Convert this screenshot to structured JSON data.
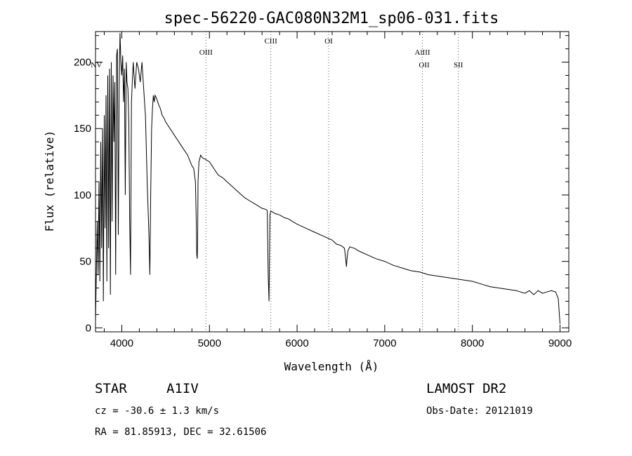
{
  "chart_data": {
    "type": "line",
    "title": "spec-56220-GAC080N32M1_sp06-031.fits",
    "xlabel": "Wavelength (Å)",
    "ylabel": "Flux (relative)",
    "xlim": [
      3700,
      9100
    ],
    "ylim": [
      -3,
      223
    ],
    "xticks": [
      4000,
      5000,
      6000,
      7000,
      8000,
      9000
    ],
    "yticks": [
      0,
      50,
      100,
      150,
      200
    ],
    "grid": false,
    "spectral_lines": [
      {
        "name": "NV",
        "wavelength": 3710
      },
      {
        "name": "OIII",
        "wavelength": 4960
      },
      {
        "name": "CIII",
        "wavelength": 5700
      },
      {
        "name": "OI",
        "wavelength": 6360
      },
      {
        "name": "AlIII",
        "wavelength": 7430
      },
      {
        "name": "OII",
        "wavelength": 7450
      },
      {
        "name": "SII",
        "wavelength": 7840
      }
    ],
    "series": [
      {
        "x": [
          3700,
          3720,
          3730,
          3740,
          3750,
          3760,
          3770,
          3780,
          3790,
          3800,
          3810,
          3820,
          3830,
          3840,
          3850,
          3860,
          3870,
          3880,
          3890,
          3900,
          3910,
          3920,
          3930,
          3940,
          3950,
          3960,
          3970,
          3980,
          3990,
          4000,
          4010,
          4020,
          4030,
          4040,
          4050,
          4060,
          4070,
          4080,
          4090,
          4100,
          4110,
          4120,
          4130,
          4140,
          4150,
          4170,
          4190,
          4210,
          4230,
          4250,
          4270,
          4290,
          4310,
          4320,
          4330,
          4340,
          4350,
          4360,
          4370,
          4380,
          4400,
          4420,
          4440,
          4460,
          4480,
          4500,
          4550,
          4600,
          4650,
          4700,
          4750,
          4800,
          4820,
          4840,
          4850,
          4855,
          4861,
          4866,
          4870,
          4880,
          4900,
          4920,
          4950,
          5000,
          5050,
          5100,
          5150,
          5200,
          5250,
          5300,
          5350,
          5400,
          5450,
          5500,
          5550,
          5600,
          5650,
          5660,
          5670,
          5680,
          5690,
          5700,
          5750,
          5800,
          5850,
          5900,
          5950,
          6000,
          6100,
          6200,
          6300,
          6400,
          6450,
          6500,
          6540,
          6555,
          6563,
          6570,
          6580,
          6600,
          6650,
          6700,
          6800,
          6900,
          7000,
          7100,
          7200,
          7300,
          7400,
          7500,
          7600,
          7700,
          7800,
          7900,
          8000,
          8100,
          8200,
          8300,
          8400,
          8500,
          8550,
          8600,
          8650,
          8700,
          8750,
          8800,
          8850,
          8900,
          8950,
          8980,
          9000
        ],
        "y": [
          5,
          80,
          40,
          110,
          35,
          140,
          60,
          150,
          20,
          160,
          75,
          175,
          35,
          190,
          60,
          195,
          25,
          200,
          80,
          190,
          140,
          185,
          40,
          205,
          210,
          70,
          180,
          222,
          200,
          190,
          205,
          170,
          195,
          100,
          200,
          185,
          180,
          155,
          80,
          40,
          170,
          185,
          200,
          190,
          180,
          200,
          195,
          185,
          200,
          180,
          160,
          110,
          70,
          40,
          100,
          150,
          165,
          175,
          170,
          175,
          172,
          168,
          165,
          160,
          158,
          155,
          150,
          145,
          140,
          135,
          130,
          122,
          120,
          110,
          80,
          55,
          52,
          70,
          110,
          125,
          130,
          128,
          127,
          125,
          120,
          115,
          113,
          110,
          107,
          104,
          101,
          98,
          96,
          94,
          92,
          90,
          89,
          88,
          40,
          20,
          85,
          88,
          86,
          85,
          83,
          82,
          80,
          78,
          75,
          72,
          69,
          66,
          63,
          62,
          60,
          52,
          46,
          52,
          58,
          61,
          60,
          58,
          55,
          52,
          50,
          47,
          45,
          43,
          42,
          40,
          39,
          38,
          37,
          36,
          35,
          33,
          31,
          30,
          29,
          28,
          27,
          26,
          28,
          25,
          28,
          26,
          27,
          28,
          27,
          22,
          3
        ]
      }
    ]
  },
  "info": {
    "object_type": "STAR",
    "subclass": "A1IV",
    "survey": "LAMOST DR2",
    "cz": "cz = -30.6 ± 1.3 km/s",
    "obs_date": "Obs-Date: 20121019",
    "coords": "RA =  81.85913, DEC =  32.61506"
  }
}
